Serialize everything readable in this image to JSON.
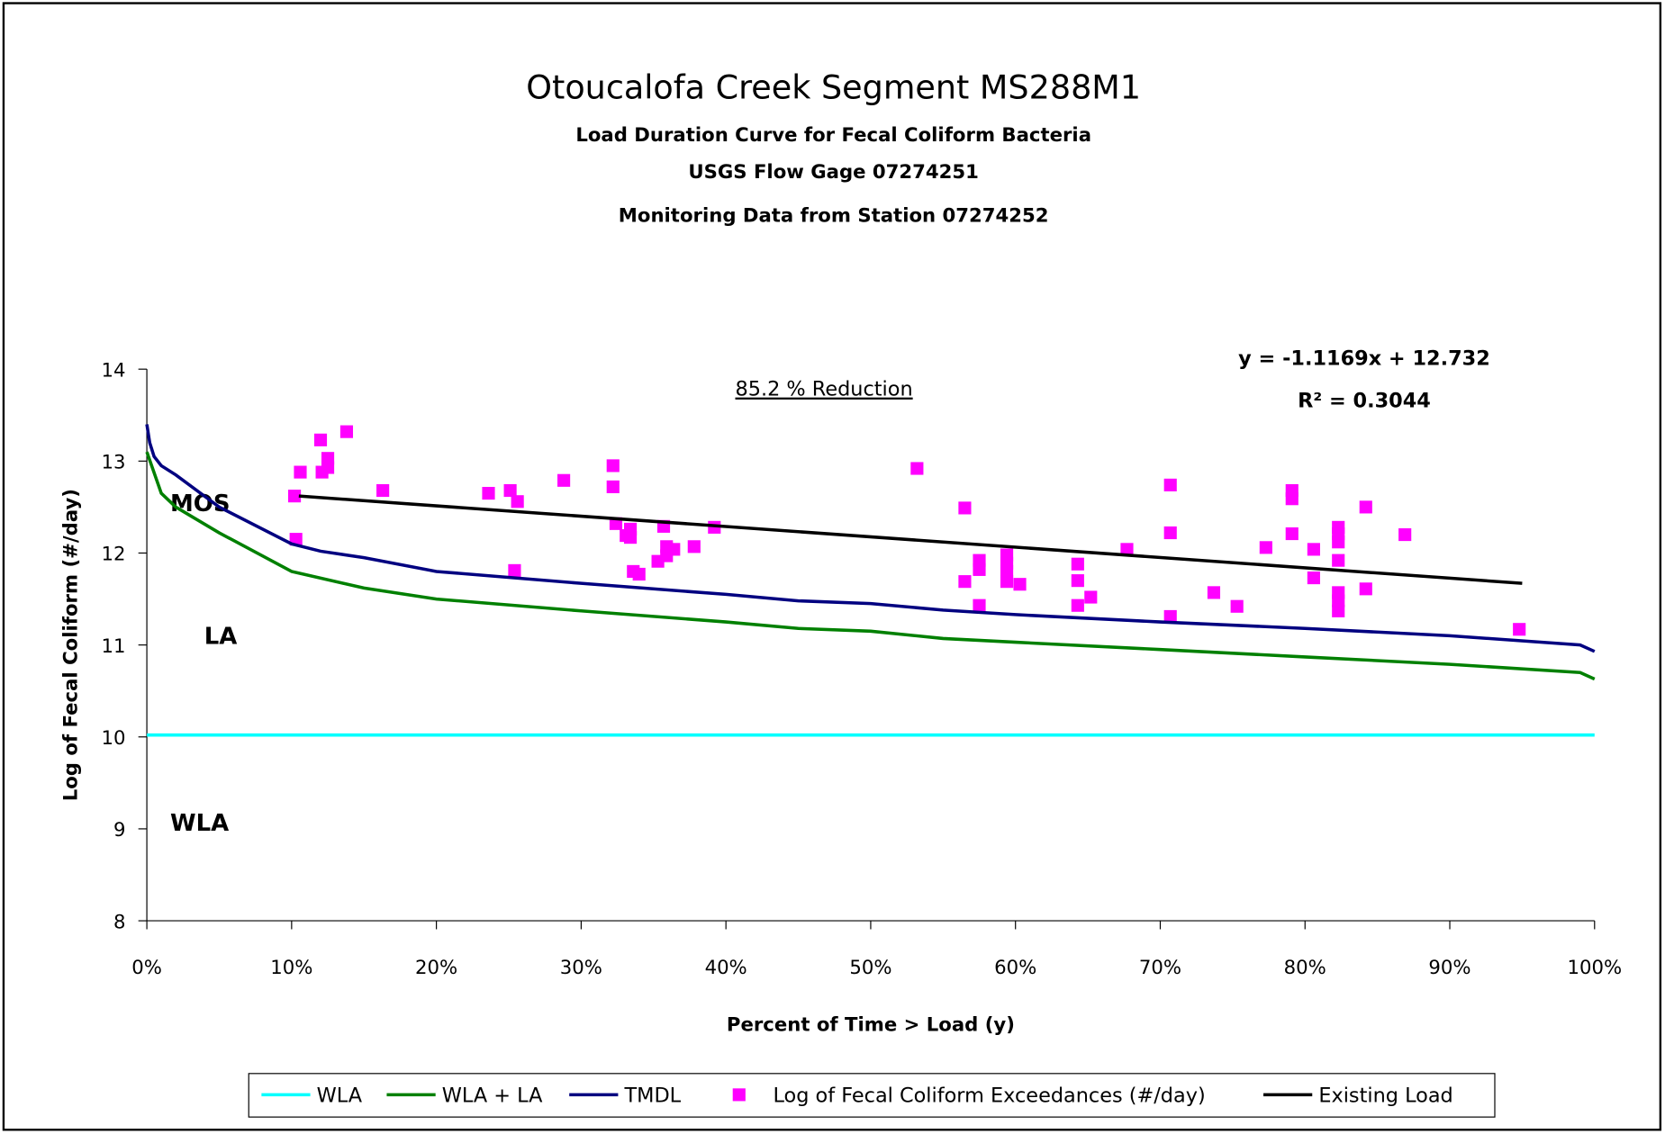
{
  "chart_data": {
    "type": "line",
    "title": "Otoucalofa Creek Segment MS288M1",
    "subtitles": [
      "Load Duration Curve for Fecal Coliform Bacteria",
      "USGS Flow Gage 07274251",
      "Monitoring Data from Station 07274252"
    ],
    "x_label": "Percent of Time > Load (y)",
    "y_label": "Log of Fecal Coliform (#/day)",
    "annotations": {
      "reduction": "85.2 % Reduction",
      "equation": "y = -1.1169x + 12.732",
      "r_squared": "R² = 0.3044",
      "zones": [
        "MOS",
        "LA",
        "WLA"
      ]
    },
    "xlim": [
      0,
      100
    ],
    "ylim": [
      8,
      14
    ],
    "xticks": [
      {
        "value": 0,
        "label": "0%"
      },
      {
        "value": 10,
        "label": "10%"
      },
      {
        "value": 20,
        "label": "20%"
      },
      {
        "value": 30,
        "label": "30%"
      },
      {
        "value": 40,
        "label": "40%"
      },
      {
        "value": 50,
        "label": "50%"
      },
      {
        "value": 60,
        "label": "60%"
      },
      {
        "value": 70,
        "label": "70%"
      },
      {
        "value": 80,
        "label": "80%"
      },
      {
        "value": 90,
        "label": "90%"
      },
      {
        "value": 100,
        "label": "100%"
      }
    ],
    "yticks": [
      8,
      9,
      10,
      11,
      12,
      13,
      14
    ],
    "legend": "bottom",
    "series": [
      {
        "name": "WLA",
        "color": "#00ffff",
        "kind": "line",
        "x": [
          0,
          100
        ],
        "values": [
          10.02,
          10.02
        ]
      },
      {
        "name": "WLA + LA",
        "color": "#008000",
        "kind": "line",
        "x": [
          0,
          1,
          2,
          5,
          10,
          15,
          20,
          30,
          40,
          45,
          50,
          55,
          60,
          70,
          80,
          90,
          99,
          100
        ],
        "values": [
          13.1,
          12.65,
          12.5,
          12.22,
          11.8,
          11.62,
          11.5,
          11.37,
          11.25,
          11.18,
          11.15,
          11.07,
          11.03,
          10.95,
          10.87,
          10.79,
          10.7,
          10.63
        ]
      },
      {
        "name": "TMDL",
        "color": "#000080",
        "kind": "line",
        "x": [
          0,
          0.2,
          0.5,
          1,
          2,
          5,
          10,
          12,
          15,
          20,
          30,
          40,
          45,
          50,
          55,
          60,
          70,
          80,
          90,
          99,
          100
        ],
        "values": [
          13.4,
          13.2,
          13.05,
          12.95,
          12.85,
          12.5,
          12.1,
          12.02,
          11.95,
          11.8,
          11.67,
          11.55,
          11.48,
          11.45,
          11.38,
          11.33,
          11.25,
          11.18,
          11.1,
          11.0,
          10.93
        ]
      },
      {
        "name": "Log of Fecal Coliform Exceedances (#/day)",
        "color": "#ff00ff",
        "kind": "scatter",
        "x": [
          10.2,
          10.3,
          10.6,
          12.0,
          12.1,
          12.5,
          12.5,
          13.8,
          16.3,
          23.6,
          25.1,
          25.6,
          25.4,
          28.8,
          32.2,
          32.2,
          32.4,
          33.1,
          33.4,
          33.4,
          33.6,
          34.0,
          35.3,
          35.7,
          35.9,
          35.9,
          36.4,
          37.8,
          39.2,
          53.2,
          56.5,
          56.5,
          57.5,
          57.5,
          57.5,
          59.4,
          59.4,
          59.4,
          59.4,
          60.3,
          64.3,
          64.3,
          64.3,
          65.2,
          67.7,
          70.7,
          70.7,
          70.7,
          73.7,
          75.3,
          77.3,
          79.1,
          79.1,
          79.1,
          80.6,
          80.6,
          82.3,
          82.3,
          82.3,
          82.3,
          82.3,
          82.3,
          82.3,
          84.2,
          84.2,
          86.9,
          94.8
        ],
        "values": [
          12.62,
          12.15,
          12.88,
          13.23,
          12.88,
          13.03,
          12.93,
          13.32,
          12.68,
          12.65,
          12.68,
          12.56,
          11.81,
          12.79,
          12.95,
          12.72,
          12.32,
          12.19,
          12.26,
          12.17,
          11.8,
          11.77,
          11.91,
          12.29,
          12.07,
          11.97,
          12.04,
          12.07,
          12.28,
          12.92,
          12.49,
          11.69,
          11.92,
          11.82,
          11.43,
          11.98,
          11.89,
          11.8,
          11.69,
          11.66,
          11.88,
          11.7,
          11.43,
          11.52,
          12.04,
          12.74,
          12.22,
          11.31,
          11.57,
          11.42,
          12.06,
          12.68,
          12.59,
          12.21,
          12.04,
          11.73,
          12.28,
          12.21,
          12.12,
          11.92,
          11.57,
          11.48,
          11.37,
          12.5,
          11.61,
          12.2,
          11.17
        ]
      },
      {
        "name": "Existing Load",
        "color": "#000000",
        "kind": "line",
        "x": [
          10.5,
          95
        ],
        "values": [
          12.62,
          11.67
        ]
      }
    ]
  }
}
